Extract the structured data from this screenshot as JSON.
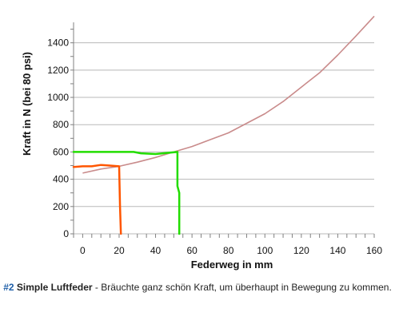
{
  "chart_data": {
    "type": "line",
    "xlabel": "Federweg in mm",
    "ylabel": "Kraft in N (bei 80 psi)",
    "xlim": [
      -5,
      160
    ],
    "ylim": [
      0,
      1550
    ],
    "xticks": [
      0,
      20,
      40,
      60,
      80,
      100,
      120,
      140,
      160
    ],
    "yticks": [
      0,
      200,
      400,
      600,
      800,
      1000,
      1200,
      1400
    ],
    "grid": "horizontal",
    "series": [
      {
        "color": "#c98b8b",
        "x": [
          0,
          10,
          20,
          30,
          40,
          50,
          60,
          70,
          80,
          90,
          100,
          110,
          120,
          130,
          140,
          150,
          160
        ],
        "y": [
          445,
          475,
          495,
          525,
          560,
          600,
          640,
          690,
          740,
          810,
          880,
          970,
          1075,
          1180,
          1310,
          1450,
          1595
        ]
      }
    ],
    "annotations": [
      {
        "color": "#ff5500",
        "x": [
          -5,
          0,
          5,
          10,
          15,
          20,
          20.5,
          21
        ],
        "y": [
          490,
          495,
          495,
          505,
          500,
          495,
          200,
          0
        ]
      },
      {
        "color": "#22dd00",
        "x": [
          -5,
          10,
          28,
          32,
          40,
          52,
          52,
          53,
          53
        ],
        "y": [
          600,
          600,
          600,
          590,
          585,
          600,
          350,
          300,
          0
        ]
      }
    ]
  },
  "caption": {
    "number": "#2",
    "title": "Simple Luftfeder",
    "text": " - Bräuchte ganz schön Kraft, um überhaupt in Bewegung zu kommen."
  }
}
